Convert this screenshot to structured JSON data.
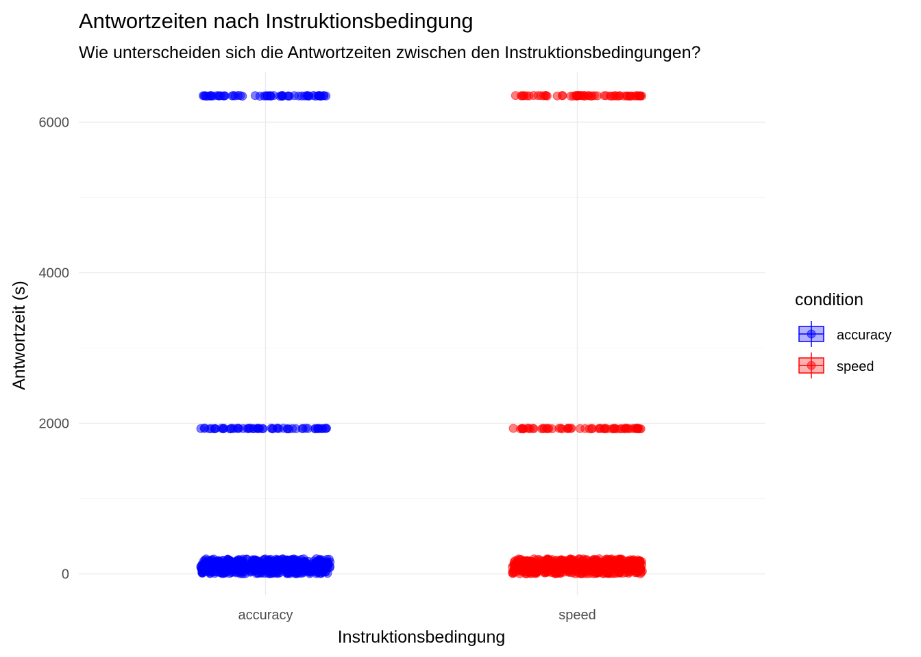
{
  "chart_data": {
    "type": "scatter",
    "title": "Antwortzeiten nach Instruktionsbedingung",
    "subtitle": "Wie unterscheiden sich die Antwortzeiten zwischen den Instruktionsbedingungen?",
    "xlabel": "Instruktionsbedingung",
    "ylabel": "Antwortzeit (s)",
    "categories": [
      "accuracy",
      "speed"
    ],
    "y_ticks": [
      0,
      2000,
      4000,
      6000
    ],
    "ylim": [
      -300,
      6700
    ],
    "grid": true,
    "legend": {
      "title": "condition",
      "placement": "right",
      "entries": [
        "accuracy",
        "speed"
      ]
    },
    "series": [
      {
        "name": "accuracy",
        "color": "#0000ff",
        "clusters": [
          {
            "y_min": 0,
            "y_max": 200,
            "count": 500
          },
          {
            "y_min": 1925,
            "y_max": 1935,
            "count": 60
          },
          {
            "y_min": 6345,
            "y_max": 6355,
            "count": 60
          }
        ]
      },
      {
        "name": "speed",
        "color": "#ff0000",
        "clusters": [
          {
            "y_min": 0,
            "y_max": 200,
            "count": 500
          },
          {
            "y_min": 1925,
            "y_max": 1935,
            "count": 60
          },
          {
            "y_min": 6345,
            "y_max": 6355,
            "count": 60
          }
        ]
      }
    ]
  }
}
